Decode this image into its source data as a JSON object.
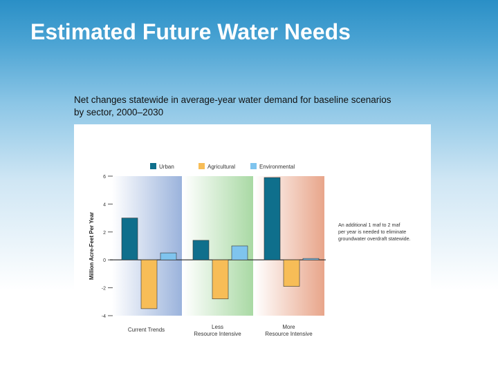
{
  "slide": {
    "title": "Estimated Future Water Needs",
    "subtitle_line1": "Net changes statewide in average-year water demand for baseline scenarios",
    "subtitle_line2": "by sector, 2000–2030"
  },
  "chart_data": {
    "type": "bar",
    "categories": [
      "Current Trends",
      "Less Resource Intensive",
      "More Resource Intensive"
    ],
    "category_label_lines": [
      [
        "Current Trends"
      ],
      [
        "Less",
        "Resource Intensive"
      ],
      [
        "More",
        "Resource Intensive"
      ]
    ],
    "series": [
      {
        "name": "Urban",
        "color": "#0f6f8c",
        "values": [
          3.0,
          1.4,
          5.9
        ]
      },
      {
        "name": "Agricultural",
        "color": "#f7bd57",
        "values": [
          -3.5,
          -2.8,
          -1.9
        ]
      },
      {
        "name": "Environmental",
        "color": "#7fc4ee",
        "values": [
          0.5,
          1.0,
          0.1
        ]
      }
    ],
    "ylabel": "Million Acre-Feet Per Year",
    "ylim": [
      -4,
      6
    ],
    "yticks": [
      6,
      4,
      2,
      0,
      -2,
      -4
    ],
    "background_colors": [
      "#9bb3dc",
      "#a9d9a4",
      "#e8a58a"
    ],
    "annotation": [
      "An additional 1 maf to 2 maf",
      "per year is needed to eliminate",
      "groundwater overdraft statewide."
    ],
    "legend_position": "top",
    "grid": false
  }
}
